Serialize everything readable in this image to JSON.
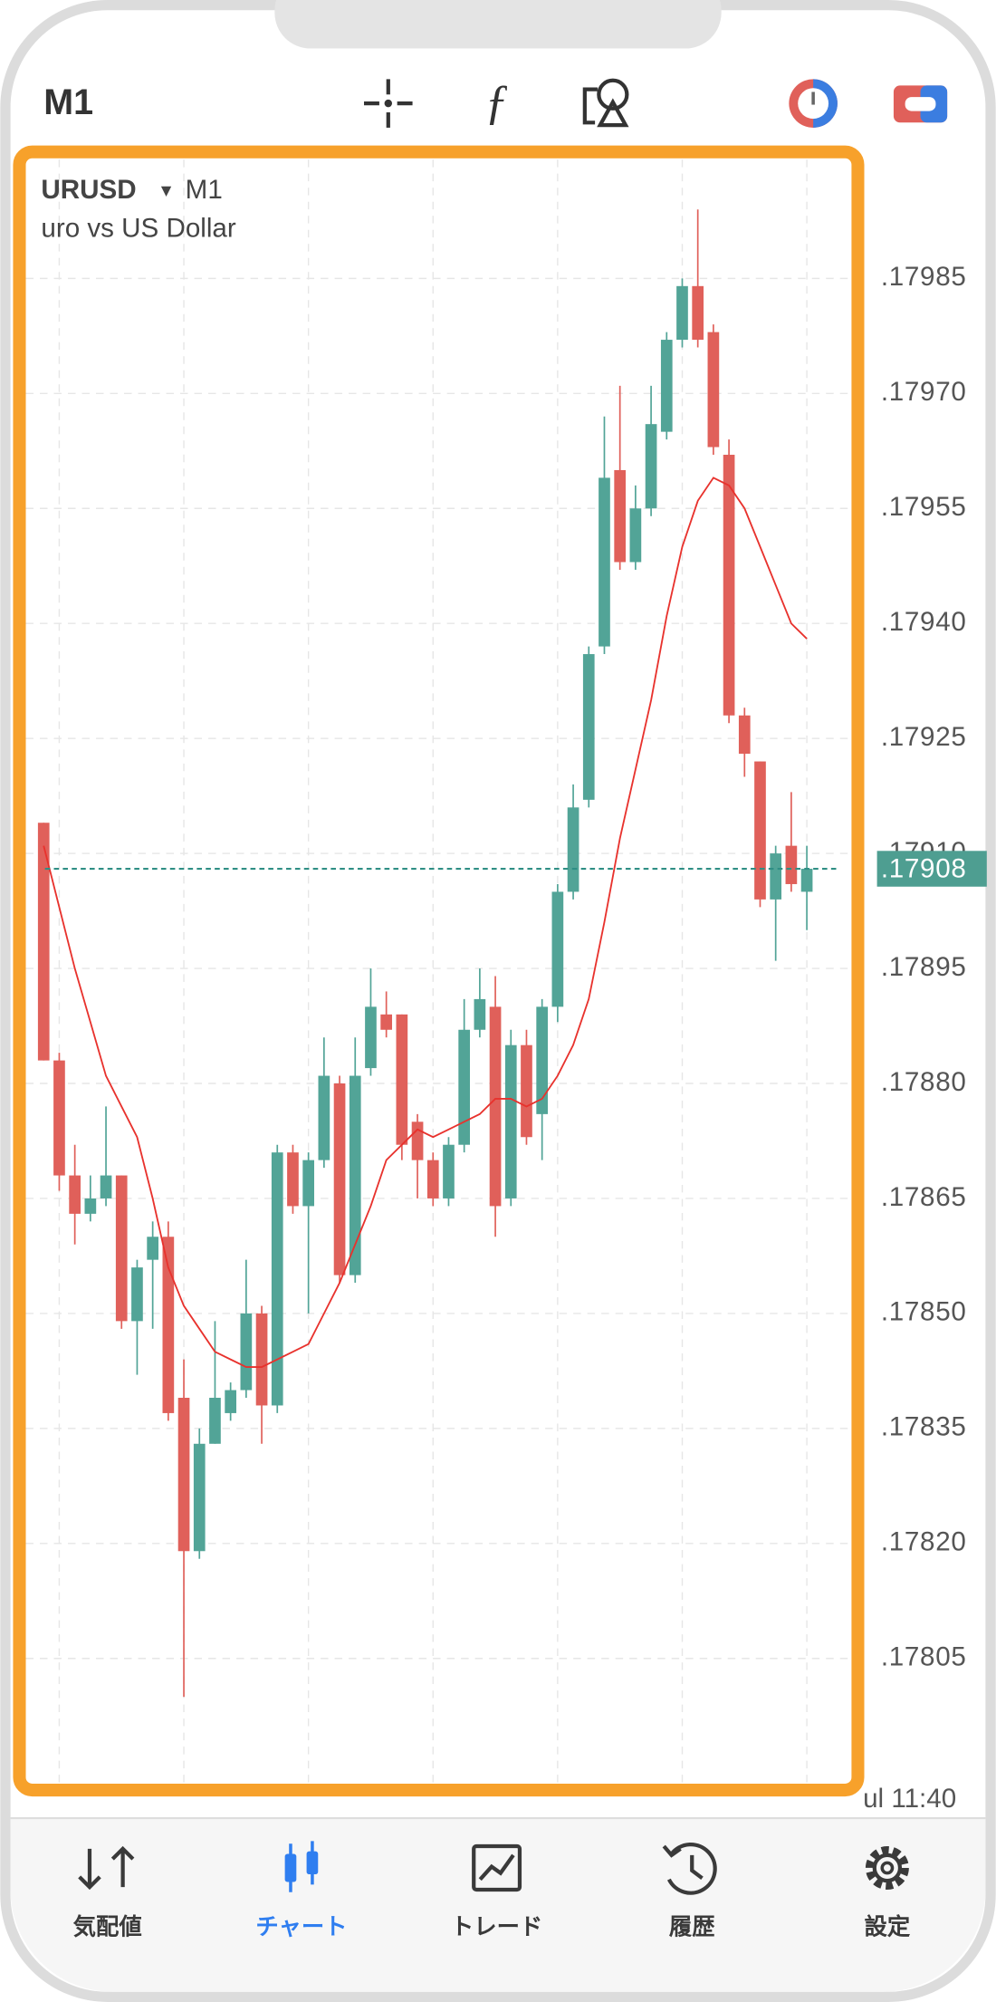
{
  "header": {
    "timeframe": "M1"
  },
  "chart_data": {
    "type": "candlestick",
    "symbol": "URUSD",
    "timeframe": "M1",
    "description": "uro vs US Dollar",
    "up_color": "#52a497",
    "down_color": "#e0605a",
    "ylim": [
      1.17789,
      1.18
    ],
    "yticks": [
      {
        "value": 1.17985,
        "label": ".17985"
      },
      {
        "value": 1.1797,
        "label": ".17970"
      },
      {
        "value": 1.17955,
        "label": ".17955"
      },
      {
        "value": 1.1794,
        "label": ".17940"
      },
      {
        "value": 1.17925,
        "label": ".17925"
      },
      {
        "value": 1.1791,
        "label": ".17910"
      },
      {
        "value": 1.17895,
        "label": ".17895"
      },
      {
        "value": 1.1788,
        "label": ".17880"
      },
      {
        "value": 1.17865,
        "label": ".17865"
      },
      {
        "value": 1.1785,
        "label": ".17850"
      },
      {
        "value": 1.17835,
        "label": ".17835"
      },
      {
        "value": 1.1782,
        "label": ".17820"
      },
      {
        "value": 1.17805,
        "label": ".17805"
      }
    ],
    "grid": true,
    "current_price": {
      "value": 1.17908,
      "label": ".17908"
    },
    "x_label": "ul 11:40",
    "candles": {
      "open": [
        1.17914,
        1.17883,
        1.17868,
        1.17863,
        1.17865,
        1.17868,
        1.17849,
        1.17857,
        1.1786,
        1.17839,
        1.17819,
        1.17833,
        1.17837,
        1.1784,
        1.1785,
        1.17838,
        1.17871,
        1.17864,
        1.1787,
        1.1788,
        1.17855,
        1.17882,
        1.17889,
        1.17889,
        1.17875,
        1.1787,
        1.17865,
        1.17872,
        1.17887,
        1.1789,
        1.17865,
        1.17885,
        1.17876,
        1.1789,
        1.17905,
        1.17917,
        1.17937,
        1.1796,
        1.17948,
        1.17955,
        1.17965,
        1.17977,
        1.17984,
        1.17978,
        1.17962,
        1.17928,
        1.17922,
        1.17904,
        1.17911,
        1.17905
      ],
      "high": [
        1.17914,
        1.17884,
        1.17872,
        1.17868,
        1.17877,
        1.17868,
        1.17857,
        1.17862,
        1.17862,
        1.17844,
        1.17835,
        1.17849,
        1.17841,
        1.17857,
        1.17851,
        1.17872,
        1.17872,
        1.17871,
        1.17886,
        1.17881,
        1.17886,
        1.17895,
        1.17892,
        1.17889,
        1.17876,
        1.17871,
        1.17873,
        1.17891,
        1.17895,
        1.17894,
        1.17887,
        1.17887,
        1.17891,
        1.17906,
        1.17919,
        1.17937,
        1.17967,
        1.17971,
        1.17958,
        1.17971,
        1.17978,
        1.17985,
        1.17994,
        1.17979,
        1.17964,
        1.17929,
        1.17922,
        1.17911,
        1.17918,
        1.17911
      ],
      "low": [
        1.17883,
        1.17866,
        1.17859,
        1.17862,
        1.17864,
        1.17848,
        1.17842,
        1.17848,
        1.17836,
        1.178,
        1.17818,
        1.17833,
        1.17836,
        1.17839,
        1.17833,
        1.17837,
        1.17863,
        1.1785,
        1.17869,
        1.17854,
        1.17854,
        1.17881,
        1.17886,
        1.1787,
        1.17865,
        1.17864,
        1.17864,
        1.17871,
        1.17886,
        1.1786,
        1.17864,
        1.17872,
        1.1787,
        1.17888,
        1.17904,
        1.17916,
        1.17936,
        1.17947,
        1.17947,
        1.17954,
        1.17964,
        1.17976,
        1.17976,
        1.17962,
        1.17927,
        1.1792,
        1.17903,
        1.17896,
        1.17905,
        1.179
      ],
      "close": [
        1.17883,
        1.17868,
        1.17863,
        1.17865,
        1.17868,
        1.17849,
        1.17856,
        1.1786,
        1.17837,
        1.17819,
        1.17833,
        1.17839,
        1.1784,
        1.1785,
        1.17838,
        1.17871,
        1.17864,
        1.1787,
        1.17881,
        1.17855,
        1.17881,
        1.1789,
        1.17887,
        1.17872,
        1.1787,
        1.17865,
        1.17872,
        1.17887,
        1.17891,
        1.17864,
        1.17885,
        1.17873,
        1.1789,
        1.17905,
        1.17916,
        1.17936,
        1.17959,
        1.17948,
        1.17955,
        1.17966,
        1.17977,
        1.17984,
        1.17977,
        1.17963,
        1.17928,
        1.17923,
        1.17904,
        1.1791,
        1.17906,
        1.17908
      ]
    },
    "ma": {
      "color": "#e8322d",
      "values": [
        1.17911,
        1.17903,
        1.17895,
        1.17888,
        1.17881,
        1.17877,
        1.17873,
        1.17865,
        1.17856,
        1.17851,
        1.17848,
        1.17845,
        1.17844,
        1.17843,
        1.17843,
        1.17844,
        1.17845,
        1.17846,
        1.1785,
        1.17854,
        1.17859,
        1.17864,
        1.1787,
        1.17872,
        1.17874,
        1.17873,
        1.17874,
        1.17875,
        1.17876,
        1.17878,
        1.17878,
        1.17877,
        1.17878,
        1.17881,
        1.17885,
        1.17891,
        1.17901,
        1.17912,
        1.17921,
        1.1793,
        1.17941,
        1.1795,
        1.17956,
        1.17959,
        1.17958,
        1.17955,
        1.1795,
        1.17945,
        1.1794,
        1.17938
      ]
    }
  },
  "nav": {
    "active": 1,
    "items": [
      "気配値",
      "チャート",
      "トレード",
      "履歴",
      "設定"
    ]
  }
}
